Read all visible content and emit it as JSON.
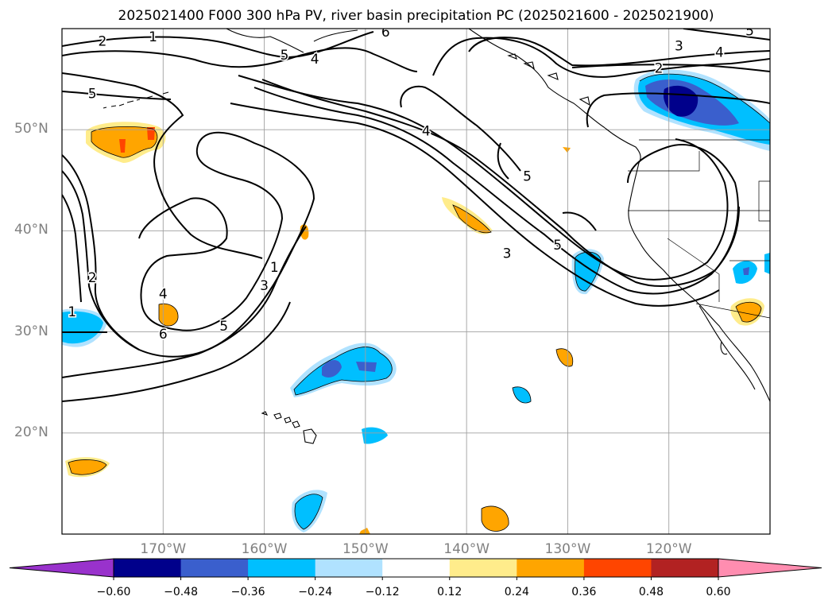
{
  "title": "2025021400 F000 300 hPa PV, river basin precipitation PC (2025021600 - 2025021900)",
  "map": {
    "lon_range": [
      -180,
      -110
    ],
    "lat_range": [
      10,
      60
    ],
    "grid": true,
    "lat_ticks": [
      {
        "value": 50,
        "label": "50°N"
      },
      {
        "value": 40,
        "label": "40°N"
      },
      {
        "value": 30,
        "label": "30°N"
      },
      {
        "value": 20,
        "label": "20°N"
      }
    ],
    "lon_ticks": [
      {
        "value": -170,
        "label": "170°W"
      },
      {
        "value": -160,
        "label": "160°W"
      },
      {
        "value": -150,
        "label": "150°W"
      },
      {
        "value": -140,
        "label": "140°W"
      },
      {
        "value": -130,
        "label": "130°W"
      },
      {
        "value": -120,
        "label": "120°W"
      }
    ],
    "contour_labels": [
      {
        "text": "2",
        "lon": -176,
        "lat": 58.8
      },
      {
        "text": "1",
        "lon": -171,
        "lat": 59.2
      },
      {
        "text": "6",
        "lon": -148,
        "lat": 59.7
      },
      {
        "text": "5",
        "lon": -158,
        "lat": 57.4
      },
      {
        "text": "4",
        "lon": -155,
        "lat": 57.0
      },
      {
        "text": "3",
        "lon": -119,
        "lat": 58.3
      },
      {
        "text": "4",
        "lon": -115,
        "lat": 57.7
      },
      {
        "text": "2",
        "lon": -121,
        "lat": 56.1
      },
      {
        "text": "5",
        "lon": -112,
        "lat": 59.8
      },
      {
        "text": "5",
        "lon": -177,
        "lat": 53.6
      },
      {
        "text": "4",
        "lon": -144,
        "lat": 49.9
      },
      {
        "text": "5",
        "lon": -134,
        "lat": 45.4
      },
      {
        "text": "5",
        "lon": -131,
        "lat": 38.6
      },
      {
        "text": "3",
        "lon": -136,
        "lat": 37.8
      },
      {
        "text": "1",
        "lon": -159,
        "lat": 36.4
      },
      {
        "text": "3",
        "lon": -160,
        "lat": 34.6
      },
      {
        "text": "2",
        "lon": -177,
        "lat": 35.4
      },
      {
        "text": "4",
        "lon": -170,
        "lat": 33.8
      },
      {
        "text": "5",
        "lon": -164,
        "lat": 30.6
      },
      {
        "text": "6",
        "lon": -170,
        "lat": 29.8
      },
      {
        "text": "1",
        "lon": -179,
        "lat": 32.0
      }
    ]
  },
  "colorbar": {
    "levels": [
      -0.6,
      -0.48,
      -0.36,
      -0.24,
      -0.12,
      0.12,
      0.24,
      0.36,
      0.48,
      0.6
    ],
    "labels": [
      "−0.60",
      "−0.48",
      "−0.36",
      "−0.24",
      "−0.12",
      "0.12",
      "0.24",
      "0.36",
      "0.48",
      "0.60"
    ],
    "colors": [
      "#9932CC",
      "#00008B",
      "#3A5FCD",
      "#00BFFF",
      "#B0E2FF",
      "#FFFFFF",
      "#FFEC8B",
      "#FFA500",
      "#FF4500",
      "#B22222",
      "#FF8DB0"
    ]
  }
}
